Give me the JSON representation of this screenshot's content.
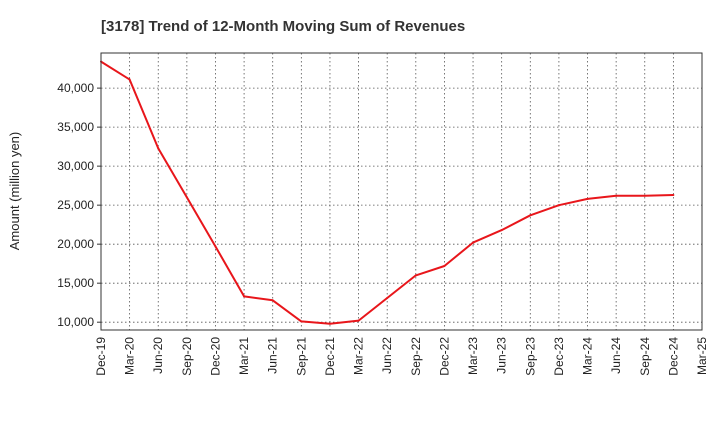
{
  "chart_data": {
    "type": "line",
    "title": "[3178]  Trend of 12-Month Moving Sum of Revenues",
    "xlabel": "",
    "ylabel": "Amount (million yen)",
    "ylim": [
      9000,
      44500
    ],
    "yticks": [
      10000,
      15000,
      20000,
      25000,
      30000,
      35000,
      40000
    ],
    "ytick_labels": [
      "10,000",
      "15,000",
      "20,000",
      "25,000",
      "30,000",
      "35,000",
      "40,000"
    ],
    "categories": [
      "Dec-19",
      "Mar-20",
      "Jun-20",
      "Sep-20",
      "Dec-20",
      "Mar-21",
      "Jun-21",
      "Sep-21",
      "Dec-21",
      "Mar-22",
      "Jun-22",
      "Sep-22",
      "Dec-22",
      "Mar-23",
      "Jun-23",
      "Sep-23",
      "Dec-23",
      "Mar-24",
      "Jun-24",
      "Sep-24",
      "Dec-24",
      "Mar-25"
    ],
    "series": [
      {
        "name": "",
        "color": "#e8161b",
        "values": [
          43400,
          41100,
          32300,
          26000,
          19700,
          13300,
          12800,
          10100,
          9800,
          10200,
          13100,
          16000,
          17200,
          20200,
          21800,
          23700,
          25000,
          25800,
          26200,
          26200,
          26300,
          null
        ]
      }
    ],
    "grid": true,
    "legend": "none"
  }
}
